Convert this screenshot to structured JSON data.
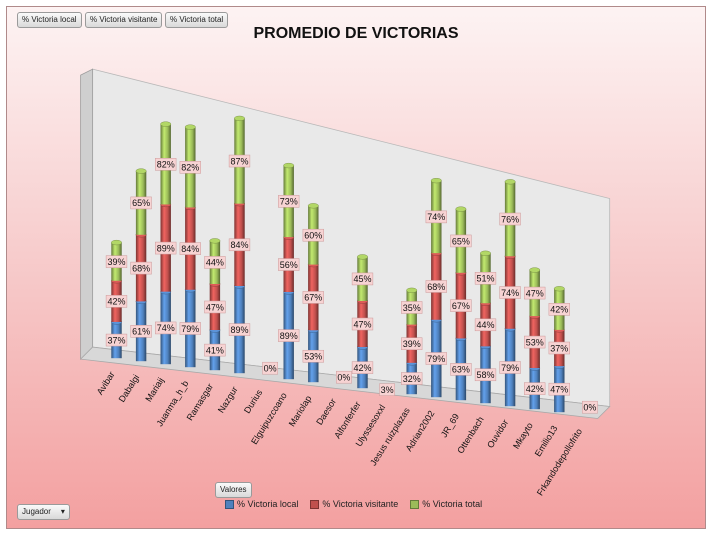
{
  "toolbar": {
    "field_buttons": [
      "% Victoria local",
      "% Victoria visitante",
      "% Victoria total"
    ],
    "values_button": "Valores",
    "filter_button": "Jugador",
    "filter_arrow": "▾"
  },
  "colors": {
    "local": "#4f81bd",
    "visitante": "#c0504d",
    "total": "#9bbb59"
  },
  "chart_data": {
    "type": "bar",
    "stacked": true,
    "three_d": true,
    "title": "PROMEDIO DE VICTORIAS",
    "legend_position": "bottom",
    "categories": [
      "Avibar",
      "Dabalgi",
      "Mariaij",
      "Juanma_h_b",
      "Ramasgar",
      "Nazgur",
      "Durius",
      "Elguipuzcoano",
      "Mariolap",
      "Daesor",
      "Alfonferfer",
      "Ulyssesoxxl",
      "Jesus ruizplazas",
      "Adrian2002",
      "JR_69",
      "Ottenbach",
      "Ouvidor",
      "Mkayto",
      "Emilio13",
      "Frkandodepollofrito"
    ],
    "series": [
      {
        "name": "% Victoria local",
        "values": [
          37,
          61,
          74,
          79,
          41,
          89,
          0,
          89,
          53,
          0,
          42,
          3,
          32,
          79,
          63,
          58,
          79,
          42,
          47,
          0
        ]
      },
      {
        "name": "% Victoria visitante",
        "values": [
          42,
          68,
          89,
          84,
          47,
          84,
          null,
          56,
          67,
          null,
          47,
          null,
          39,
          68,
          67,
          44,
          74,
          53,
          37,
          null
        ]
      },
      {
        "name": "% Victoria total",
        "values": [
          39,
          65,
          82,
          82,
          44,
          87,
          null,
          73,
          60,
          null,
          45,
          null,
          35,
          74,
          65,
          51,
          76,
          47,
          42,
          null
        ]
      }
    ],
    "value_format": "percent"
  }
}
